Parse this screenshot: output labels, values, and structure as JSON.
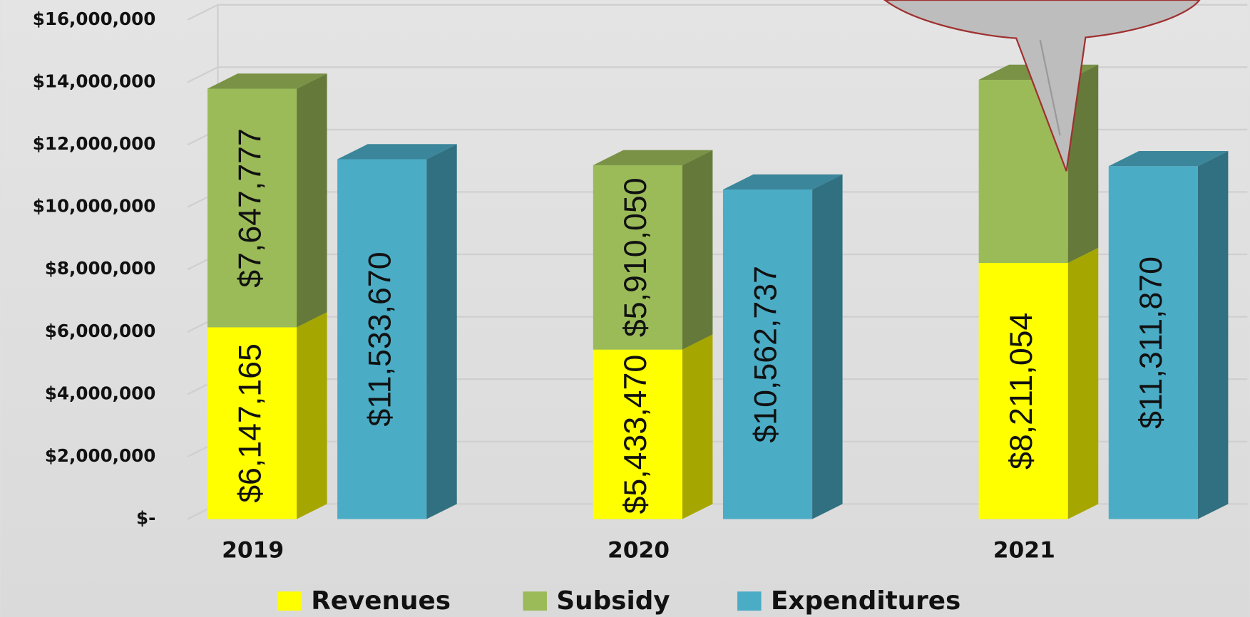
{
  "chart_data": {
    "type": "bar3d",
    "categories": [
      "2019",
      "2020",
      "2021"
    ],
    "series": [
      {
        "name": "Revenues",
        "color": "#ffff00",
        "stack": "funding",
        "values": [
          6147165,
          5433470,
          8211054
        ],
        "value_labels": [
          "$6,147,165",
          "$5,433,470",
          "$8,211,054"
        ]
      },
      {
        "name": "Subsidy",
        "color": "#9bbb59",
        "stack": "funding",
        "values": [
          7647777,
          5910050,
          5870000
        ],
        "value_labels": [
          "$7,647,777",
          "$5,910,050",
          null
        ]
      },
      {
        "name": "Expenditures",
        "color": "#4bacc6",
        "stack": "spend",
        "values": [
          11533670,
          10562737,
          11311870
        ],
        "value_labels": [
          "$11,533,670",
          "$10,562,737",
          "$11,311,870"
        ]
      }
    ],
    "ylim": [
      0,
      16000000
    ],
    "yticks": [
      {
        "value": 0,
        "label": "$-"
      },
      {
        "value": 2000000,
        "label": "$2,000,000"
      },
      {
        "value": 4000000,
        "label": "$4,000,000"
      },
      {
        "value": 6000000,
        "label": "$6,000,000"
      },
      {
        "value": 8000000,
        "label": "$8,000,000"
      },
      {
        "value": 10000000,
        "label": "$10,000,000"
      },
      {
        "value": 12000000,
        "label": "$12,000,000"
      },
      {
        "value": 14000000,
        "label": "$14,000,000"
      },
      {
        "value": 16000000,
        "label": "$16,000,000"
      }
    ],
    "grid": true,
    "legend": "bottom"
  }
}
